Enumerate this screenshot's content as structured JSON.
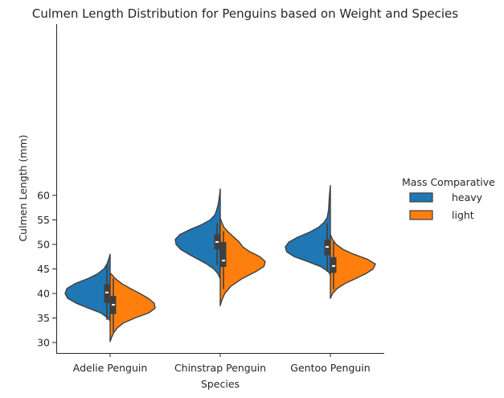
{
  "chart_data": {
    "type": "violin",
    "title": "Culmen Length Distribution for Penguins based on Weight and Species",
    "xlabel": "Species",
    "ylabel": "Culmen Length (mm)",
    "categories": [
      "Adelie Penguin",
      "Chinstrap Penguin",
      "Gentoo Penguin"
    ],
    "ylim": [
      28.7,
      63
    ],
    "yticks": [
      30,
      35,
      40,
      45,
      50,
      55,
      60
    ],
    "split": true,
    "legend": {
      "title": "Mass Comparative",
      "placement": "right",
      "entries": [
        {
          "label": "heavy",
          "color": "#1f77b4"
        },
        {
          "label": "light",
          "color": "#ff7f0e"
        }
      ]
    },
    "series": [
      {
        "name": "heavy",
        "color": "#1f77b4",
        "side": "left",
        "violins": [
          {
            "category": "Adelie Penguin",
            "min": 34.4,
            "max": 48.0,
            "q1": 38.1,
            "median": 40.2,
            "q3": 41.9,
            "whisker_low": 34.6,
            "whisker_high": 46.0,
            "profile": [
              [
                34.4,
                0.0
              ],
              [
                35.0,
                0.05
              ],
              [
                36.0,
                0.2
              ],
              [
                37.0,
                0.48
              ],
              [
                38.0,
                0.75
              ],
              [
                39.0,
                0.94
              ],
              [
                40.0,
                1.0
              ],
              [
                41.0,
                0.96
              ],
              [
                42.0,
                0.78
              ],
              [
                43.0,
                0.5
              ],
              [
                44.0,
                0.28
              ],
              [
                45.0,
                0.14
              ],
              [
                46.0,
                0.07
              ],
              [
                47.0,
                0.03
              ],
              [
                48.0,
                0.0
              ]
            ]
          },
          {
            "category": "Chinstrap Penguin",
            "min": 43.0,
            "max": 61.3,
            "q1": 49.0,
            "median": 50.5,
            "q3": 52.1,
            "whisker_low": 45.8,
            "whisker_high": 54.3,
            "profile": [
              [
                43.0,
                0.0
              ],
              [
                44.0,
                0.05
              ],
              [
                45.0,
                0.14
              ],
              [
                46.0,
                0.3
              ],
              [
                47.0,
                0.5
              ],
              [
                48.0,
                0.7
              ],
              [
                49.0,
                0.88
              ],
              [
                50.0,
                0.98
              ],
              [
                51.0,
                1.0
              ],
              [
                52.0,
                0.9
              ],
              [
                53.0,
                0.68
              ],
              [
                54.0,
                0.42
              ],
              [
                55.0,
                0.22
              ],
              [
                56.0,
                0.12
              ],
              [
                57.0,
                0.08
              ],
              [
                58.0,
                0.05
              ],
              [
                59.0,
                0.03
              ],
              [
                60.0,
                0.015
              ],
              [
                61.3,
                0.0
              ]
            ]
          },
          {
            "category": "Gentoo Penguin",
            "min": 43.8,
            "max": 62.0,
            "q1": 47.8,
            "median": 49.5,
            "q3": 51.0,
            "whisker_low": 44.4,
            "whisker_high": 54.3,
            "profile": [
              [
                43.8,
                0.0
              ],
              [
                44.5,
                0.05
              ],
              [
                45.5,
                0.22
              ],
              [
                46.5,
                0.5
              ],
              [
                47.5,
                0.8
              ],
              [
                48.5,
                0.97
              ],
              [
                49.5,
                1.0
              ],
              [
                50.5,
                0.92
              ],
              [
                51.5,
                0.72
              ],
              [
                52.5,
                0.46
              ],
              [
                53.5,
                0.26
              ],
              [
                54.5,
                0.14
              ],
              [
                55.5,
                0.07
              ],
              [
                57.0,
                0.04
              ],
              [
                58.5,
                0.03
              ],
              [
                60.0,
                0.02
              ],
              [
                62.0,
                0.0
              ]
            ]
          }
        ]
      },
      {
        "name": "light",
        "color": "#ff7f0e",
        "side": "right",
        "violins": [
          {
            "category": "Adelie Penguin",
            "min": 30.2,
            "max": 44.2,
            "q1": 35.8,
            "median": 37.7,
            "q3": 39.5,
            "whisker_low": 32.1,
            "whisker_high": 43.1,
            "profile": [
              [
                30.2,
                0.0
              ],
              [
                31.0,
                0.03
              ],
              [
                32.0,
                0.08
              ],
              [
                33.0,
                0.16
              ],
              [
                34.0,
                0.3
              ],
              [
                35.0,
                0.55
              ],
              [
                36.0,
                0.85
              ],
              [
                37.0,
                1.0
              ],
              [
                38.0,
                0.98
              ],
              [
                39.0,
                0.85
              ],
              [
                40.0,
                0.66
              ],
              [
                41.0,
                0.45
              ],
              [
                42.0,
                0.26
              ],
              [
                43.0,
                0.12
              ],
              [
                44.2,
                0.0
              ]
            ]
          },
          {
            "category": "Chinstrap Penguin",
            "min": 37.5,
            "max": 55.3,
            "q1": 45.4,
            "median": 46.7,
            "q3": 50.5,
            "whisker_low": 40.9,
            "whisker_high": 52.7,
            "profile": [
              [
                37.5,
                0.0
              ],
              [
                38.5,
                0.03
              ],
              [
                40.0,
                0.1
              ],
              [
                41.5,
                0.24
              ],
              [
                43.0,
                0.48
              ],
              [
                44.5,
                0.8
              ],
              [
                45.5,
                0.97
              ],
              [
                46.5,
                1.0
              ],
              [
                47.5,
                0.88
              ],
              [
                48.5,
                0.66
              ],
              [
                49.5,
                0.5
              ],
              [
                50.5,
                0.42
              ],
              [
                51.5,
                0.3
              ],
              [
                52.5,
                0.18
              ],
              [
                53.5,
                0.08
              ],
              [
                55.3,
                0.0
              ]
            ]
          },
          {
            "category": "Gentoo Penguin",
            "min": 39.0,
            "max": 52.0,
            "q1": 44.2,
            "median": 45.6,
            "q3": 47.4,
            "whisker_low": 40.8,
            "whisker_high": 50.5,
            "profile": [
              [
                39.0,
                0.0
              ],
              [
                40.0,
                0.05
              ],
              [
                41.0,
                0.15
              ],
              [
                42.0,
                0.32
              ],
              [
                43.0,
                0.55
              ],
              [
                44.0,
                0.78
              ],
              [
                45.0,
                0.95
              ],
              [
                46.0,
                1.0
              ],
              [
                47.0,
                0.82
              ],
              [
                48.0,
                0.52
              ],
              [
                49.0,
                0.28
              ],
              [
                50.0,
                0.13
              ],
              [
                51.0,
                0.05
              ],
              [
                52.0,
                0.0
              ]
            ]
          }
        ]
      }
    ]
  }
}
